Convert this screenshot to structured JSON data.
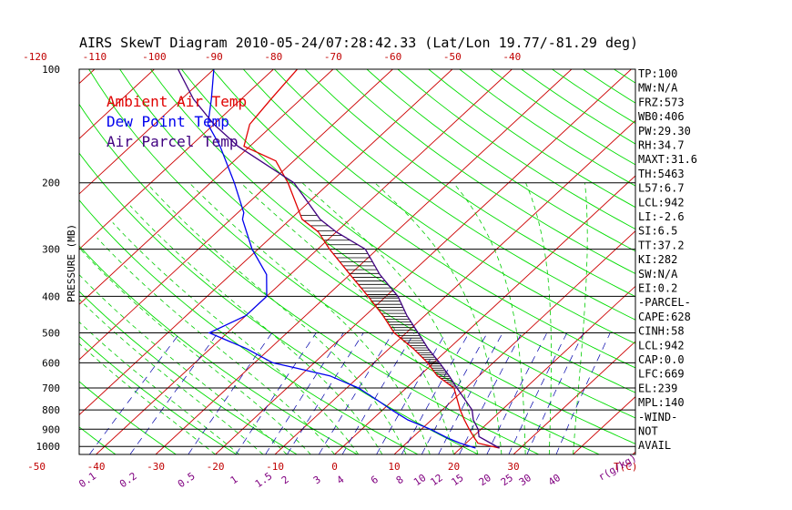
{
  "colors": {
    "ambient": "#e00000",
    "dewpoint": "#0000ee",
    "parcel": "#400080",
    "isotherm": "#cc0000",
    "dry_adiabat": "#00dd00",
    "moist_adiabat": "#00cc00",
    "mixing_ratio": "#0000aa",
    "frame": "#000000",
    "mr_label": "#800080"
  },
  "chart_data": {
    "type": "line",
    "title": "AIRS SkewT Diagram 2010-05-24/07:28:42.33 (Lat/Lon 19.77/-81.29 deg)",
    "ylabel": "PRESSURE (MB)",
    "xlabel": "T(C)",
    "mixing_ratio_unit": "r(g/kg)",
    "y_scale": "log",
    "ylim": [
      1050,
      100
    ],
    "pressure_ticks": [
      "100",
      "200",
      "300",
      "400",
      "500",
      "600",
      "700",
      "800",
      "900",
      "1000"
    ],
    "top_temp_ticks": [
      "-120",
      "-110",
      "-100",
      "-90",
      "-80",
      "-70",
      "-60",
      "-50",
      "-40"
    ],
    "bottom_temp_ticks": [
      "-50",
      "-40",
      "-30",
      "-20",
      "-10",
      "0",
      "10",
      "20",
      "30"
    ],
    "mixing_ratio_ticks": [
      "0.1",
      "0.2",
      "0.5",
      "1",
      "1.5",
      "2",
      "3",
      "4",
      "6",
      "8",
      "10",
      "12",
      "15",
      "20",
      "25",
      "30",
      "40"
    ],
    "legend": [
      "Ambient Air Temp",
      "Dew Point Temp",
      "Air Parcel Temp"
    ],
    "series": [
      {
        "name": "Ambient Air Temp",
        "points": [
          [
            1010,
            26.5
          ],
          [
            980,
            22
          ],
          [
            950,
            20.5
          ],
          [
            900,
            18
          ],
          [
            850,
            15.5
          ],
          [
            800,
            13
          ],
          [
            700,
            8
          ],
          [
            650,
            3
          ],
          [
            600,
            -1
          ],
          [
            550,
            -6
          ],
          [
            500,
            -12
          ],
          [
            450,
            -17
          ],
          [
            400,
            -23
          ],
          [
            350,
            -30
          ],
          [
            300,
            -38
          ],
          [
            270,
            -43
          ],
          [
            250,
            -48
          ],
          [
            200,
            -57
          ],
          [
            175,
            -63
          ],
          [
            160,
            -71
          ],
          [
            140,
            -74
          ],
          [
            120,
            -75
          ],
          [
            100,
            -76
          ]
        ]
      },
      {
        "name": "Dew Point Temp",
        "points": [
          [
            1010,
            22.5
          ],
          [
            980,
            19
          ],
          [
            950,
            16
          ],
          [
            900,
            11.5
          ],
          [
            850,
            6
          ],
          [
            800,
            1.5
          ],
          [
            750,
            -3
          ],
          [
            700,
            -8
          ],
          [
            650,
            -15
          ],
          [
            620,
            -22
          ],
          [
            600,
            -27
          ],
          [
            550,
            -34
          ],
          [
            500,
            -43
          ],
          [
            450,
            -40
          ],
          [
            400,
            -40
          ],
          [
            350,
            -44
          ],
          [
            300,
            -51
          ],
          [
            250,
            -58
          ],
          [
            240,
            -59
          ],
          [
            200,
            -66
          ],
          [
            160,
            -75
          ],
          [
            140,
            -81
          ],
          [
            120,
            -85
          ],
          [
            100,
            -90
          ]
        ]
      },
      {
        "name": "Air Parcel Temp",
        "points": [
          [
            1010,
            26.5
          ],
          [
            942,
            21
          ],
          [
            900,
            19.5
          ],
          [
            850,
            17
          ],
          [
            800,
            15
          ],
          [
            700,
            8.5
          ],
          [
            650,
            5
          ],
          [
            600,
            1
          ],
          [
            550,
            -3.5
          ],
          [
            500,
            -8
          ],
          [
            450,
            -13
          ],
          [
            400,
            -18
          ],
          [
            350,
            -25
          ],
          [
            300,
            -32
          ],
          [
            270,
            -40
          ],
          [
            250,
            -45
          ],
          [
            200,
            -56
          ],
          [
            160,
            -72
          ],
          [
            140,
            -80
          ],
          [
            120,
            -88
          ],
          [
            100,
            -96
          ]
        ]
      }
    ],
    "indices": [
      "TP:100",
      "MW:N/A",
      "FRZ:573",
      "WB0:406",
      "PW:29.30",
      "RH:34.7",
      "MAXT:31.6",
      "TH:5463",
      "L57:6.7",
      "LCL:942",
      "LI:-2.6",
      "SI:6.5",
      "TT:37.2",
      "KI:282",
      "SW:N/A",
      "EI:0.2",
      "-PARCEL-",
      "CAPE:628",
      "CINH:58",
      "LCL:942",
      "CAP:0.0",
      "LFC:669",
      "EL:239",
      "MPL:140",
      "-WIND-",
      "NOT",
      "AVAIL"
    ]
  }
}
